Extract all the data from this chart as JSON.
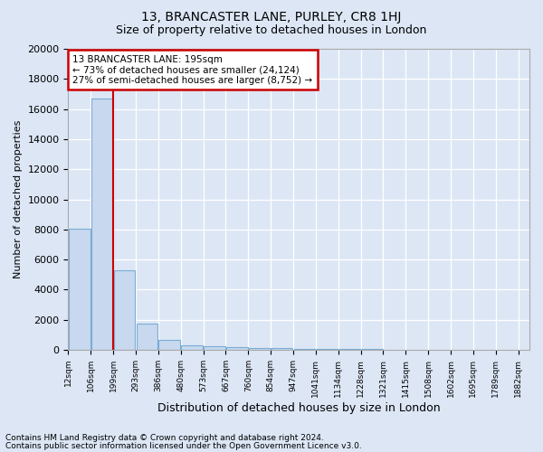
{
  "title": "13, BRANCASTER LANE, PURLEY, CR8 1HJ",
  "subtitle": "Size of property relative to detached houses in London",
  "xlabel": "Distribution of detached houses by size in London",
  "ylabel": "Number of detached properties",
  "bar_color": "#c8d8ee",
  "bar_edge_color": "#7aadd4",
  "bar_heights": [
    8050,
    16700,
    5300,
    1750,
    680,
    310,
    240,
    185,
    150,
    120,
    90,
    70,
    55,
    45,
    35,
    28,
    22,
    17,
    13,
    10
  ],
  "n_bars": 20,
  "tick_labels": [
    "12sqm",
    "106sqm",
    "199sqm",
    "293sqm",
    "386sqm",
    "480sqm",
    "573sqm",
    "667sqm",
    "760sqm",
    "854sqm",
    "947sqm",
    "1041sqm",
    "1134sqm",
    "1228sqm",
    "1321sqm",
    "1415sqm",
    "1508sqm",
    "1602sqm",
    "1695sqm",
    "1789sqm",
    "1882sqm"
  ],
  "ylim": [
    0,
    20000
  ],
  "yticks": [
    0,
    2000,
    4000,
    6000,
    8000,
    10000,
    12000,
    14000,
    16000,
    18000,
    20000
  ],
  "red_line_after_bar": 1,
  "red_line_color": "#cc0000",
  "annotation_line1": "13 BRANCASTER LANE: 195sqm",
  "annotation_line2": "← 73% of detached houses are smaller (24,124)",
  "annotation_line3": "27% of semi-detached houses are larger (8,752) →",
  "annotation_box_facecolor": "#ffffff",
  "annotation_border_color": "#cc0000",
  "footer_line1": "Contains HM Land Registry data © Crown copyright and database right 2024.",
  "footer_line2": "Contains public sector information licensed under the Open Government Licence v3.0.",
  "background_color": "#dce6f5",
  "grid_color": "#ffffff",
  "spine_color": "#aaaaaa"
}
